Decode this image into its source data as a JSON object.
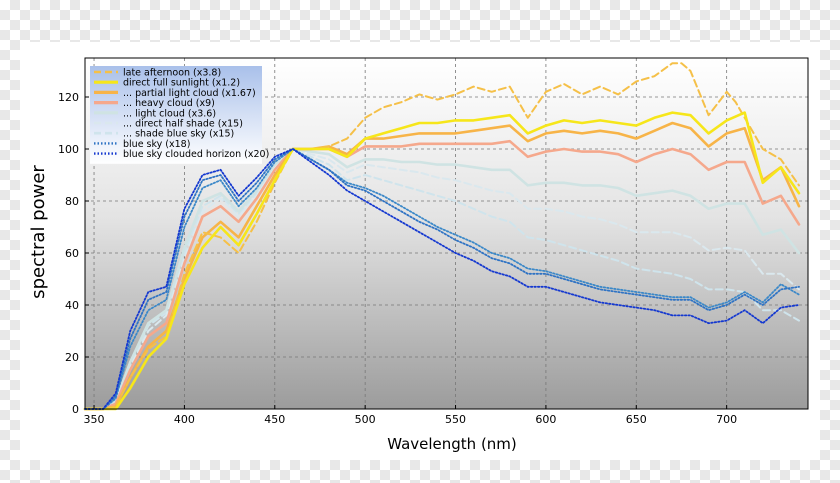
{
  "chart_data": {
    "type": "line",
    "title": "",
    "xlabel": "Wavelength (nm)",
    "ylabel": "spectral power",
    "xlim": [
      345,
      745
    ],
    "ylim": [
      0,
      135
    ],
    "xticks": [
      350,
      400,
      450,
      500,
      550,
      600,
      650,
      700
    ],
    "yticks": [
      0,
      20,
      40,
      60,
      80,
      100,
      120
    ],
    "grid": true,
    "legend_position": "upper-left",
    "series": [
      {
        "name": "late afternoon (x3.8)",
        "color": "#f5c048",
        "dash": "dashed",
        "x": [
          345,
          355,
          362,
          370,
          380,
          390,
          400,
          410,
          420,
          430,
          440,
          450,
          460,
          470,
          480,
          490,
          500,
          510,
          520,
          530,
          540,
          550,
          560,
          570,
          580,
          590,
          600,
          610,
          620,
          630,
          640,
          650,
          660,
          670,
          675,
          680,
          690,
          700,
          705,
          710,
          720,
          730,
          740
        ],
        "y": [
          0,
          0,
          1,
          12,
          23,
          28,
          52,
          68,
          66,
          60,
          72,
          87,
          100,
          100,
          101,
          104,
          112,
          116,
          118,
          121,
          119,
          121,
          124,
          122,
          124,
          112,
          122,
          125,
          121,
          124,
          121,
          126,
          128,
          133,
          133,
          130,
          113,
          122,
          118,
          112,
          100,
          96,
          86
        ]
      },
      {
        "name": "direct full sunlight (x1.2)",
        "color": "#f6e61a",
        "dash": "solid",
        "x": [
          345,
          355,
          362,
          370,
          380,
          390,
          400,
          410,
          420,
          430,
          440,
          450,
          460,
          470,
          480,
          490,
          500,
          510,
          520,
          530,
          540,
          550,
          560,
          570,
          580,
          590,
          600,
          610,
          620,
          630,
          640,
          650,
          660,
          670,
          680,
          690,
          700,
          710,
          720,
          730,
          740
        ],
        "y": [
          0,
          0,
          0,
          8,
          20,
          27,
          48,
          62,
          70,
          63,
          75,
          88,
          100,
          100,
          100,
          97,
          104,
          106,
          108,
          110,
          110,
          111,
          111,
          112,
          113,
          106,
          109,
          111,
          110,
          111,
          110,
          109,
          112,
          114,
          113,
          106,
          111,
          114,
          87,
          93,
          83
        ]
      },
      {
        "name": "... partial light cloud (x1.67)",
        "color": "#f7b448",
        "dash": "solid",
        "x": [
          345,
          355,
          362,
          370,
          380,
          390,
          400,
          410,
          420,
          430,
          440,
          450,
          460,
          470,
          480,
          490,
          500,
          510,
          520,
          530,
          540,
          550,
          560,
          570,
          580,
          590,
          600,
          610,
          620,
          630,
          640,
          650,
          660,
          670,
          680,
          690,
          700,
          710,
          720,
          730,
          740
        ],
        "y": [
          0,
          0,
          1,
          12,
          24,
          30,
          50,
          66,
          72,
          66,
          78,
          90,
          100,
          100,
          101,
          98,
          104,
          104,
          105,
          106,
          106,
          106,
          107,
          108,
          109,
          103,
          106,
          107,
          106,
          107,
          106,
          104,
          107,
          110,
          108,
          101,
          106,
          108,
          88,
          93,
          78
        ]
      },
      {
        "name": "... heavy cloud (x9)",
        "color": "#f5a88c",
        "dash": "solid",
        "x": [
          345,
          355,
          362,
          370,
          380,
          390,
          400,
          410,
          420,
          430,
          440,
          450,
          460,
          470,
          480,
          490,
          500,
          510,
          520,
          530,
          540,
          550,
          560,
          570,
          580,
          590,
          600,
          610,
          620,
          630,
          640,
          650,
          660,
          670,
          680,
          690,
          700,
          710,
          720,
          730,
          740
        ],
        "y": [
          0,
          0,
          2,
          15,
          28,
          33,
          56,
          74,
          78,
          72,
          81,
          92,
          100,
          100,
          100,
          97,
          101,
          101,
          101,
          102,
          102,
          102,
          102,
          102,
          103,
          97,
          99,
          100,
          99,
          99,
          98,
          95,
          98,
          100,
          98,
          92,
          95,
          95,
          79,
          82,
          71
        ]
      },
      {
        "name": "... light cloud (x3.6)",
        "color": "#cfe3e3",
        "dash": "solid",
        "x": [
          345,
          355,
          362,
          370,
          380,
          390,
          400,
          410,
          420,
          430,
          440,
          450,
          460,
          470,
          480,
          490,
          500,
          510,
          520,
          530,
          540,
          550,
          560,
          570,
          580,
          590,
          600,
          610,
          620,
          630,
          640,
          650,
          660,
          670,
          680,
          690,
          700,
          710,
          720,
          730,
          740
        ],
        "y": [
          0,
          0,
          3,
          18,
          33,
          38,
          62,
          80,
          83,
          76,
          84,
          94,
          100,
          99,
          98,
          93,
          96,
          96,
          95,
          95,
          94,
          94,
          93,
          92,
          92,
          86,
          87,
          87,
          86,
          86,
          85,
          82,
          83,
          84,
          82,
          77,
          79,
          79,
          67,
          69,
          60
        ]
      },
      {
        "name": "... direct half shade (x15)",
        "color": "#dae8ee",
        "dash": "dashed",
        "x": [
          345,
          355,
          362,
          370,
          380,
          390,
          400,
          410,
          420,
          430,
          440,
          450,
          460,
          470,
          480,
          490,
          500,
          510,
          520,
          530,
          540,
          550,
          560,
          570,
          580,
          590,
          600,
          610,
          620,
          630,
          640,
          650,
          660,
          670,
          680,
          690,
          700,
          710,
          720,
          730,
          740
        ],
        "y": [
          0,
          0,
          2,
          16,
          30,
          36,
          58,
          76,
          81,
          74,
          82,
          93,
          100,
          98,
          96,
          91,
          94,
          93,
          92,
          91,
          89,
          88,
          86,
          84,
          83,
          77,
          77,
          76,
          74,
          73,
          71,
          68,
          68,
          68,
          66,
          61,
          62,
          61,
          52,
          52,
          46
        ]
      },
      {
        "name": "... shade blue sky (x15)",
        "color": "#cfe4ec",
        "dash": "dashed",
        "x": [
          345,
          355,
          362,
          370,
          380,
          390,
          400,
          410,
          420,
          430,
          440,
          450,
          460,
          470,
          480,
          490,
          500,
          510,
          520,
          530,
          540,
          550,
          560,
          570,
          580,
          590,
          600,
          610,
          620,
          630,
          640,
          650,
          660,
          670,
          680,
          690,
          700,
          710,
          720,
          730,
          740
        ],
        "y": [
          0,
          0,
          3,
          17,
          32,
          37,
          60,
          78,
          82,
          75,
          83,
          93,
          100,
          97,
          94,
          88,
          90,
          88,
          86,
          84,
          82,
          80,
          77,
          74,
          72,
          66,
          65,
          63,
          61,
          59,
          57,
          54,
          53,
          52,
          50,
          46,
          46,
          45,
          38,
          38,
          34
        ]
      },
      {
        "name": "blue sky (x18)",
        "color": "#2f73c4",
        "dash": "dotted",
        "x": [
          345,
          355,
          362,
          370,
          380,
          390,
          400,
          410,
          420,
          430,
          440,
          450,
          460,
          470,
          480,
          490,
          500,
          510,
          520,
          530,
          540,
          550,
          560,
          570,
          580,
          590,
          600,
          610,
          620,
          630,
          640,
          650,
          660,
          670,
          680,
          690,
          700,
          710,
          720,
          730,
          740
        ],
        "y": [
          0,
          0,
          5,
          27,
          42,
          45,
          74,
          88,
          90,
          80,
          87,
          96,
          100,
          96,
          92,
          86,
          84,
          80,
          76,
          72,
          69,
          65,
          62,
          58,
          56,
          52,
          52,
          50,
          48,
          46,
          45,
          44,
          43,
          42,
          42,
          38,
          40,
          44,
          40,
          46,
          47
        ]
      },
      {
        "name": "blue sky clouded horizon (x20)",
        "color": "#1438d0",
        "dash": "dotted",
        "x": [
          345,
          355,
          362,
          370,
          380,
          390,
          400,
          410,
          420,
          430,
          440,
          450,
          460,
          470,
          480,
          490,
          500,
          510,
          520,
          530,
          540,
          550,
          560,
          570,
          580,
          590,
          600,
          610,
          620,
          630,
          640,
          650,
          660,
          670,
          680,
          690,
          700,
          710,
          720,
          730,
          740
        ],
        "y": [
          0,
          0,
          6,
          30,
          45,
          47,
          77,
          90,
          92,
          82,
          89,
          97,
          100,
          95,
          90,
          84,
          80,
          76,
          72,
          68,
          64,
          60,
          57,
          53,
          51,
          47,
          47,
          45,
          43,
          41,
          40,
          39,
          38,
          36,
          36,
          33,
          34,
          38,
          33,
          39,
          40
        ]
      },
      {
        "name": "",
        "color": "#3b88c8",
        "dash": "dotted",
        "legend": false,
        "x": [
          345,
          355,
          362,
          370,
          380,
          390,
          400,
          410,
          420,
          430,
          440,
          450,
          460,
          470,
          480,
          490,
          500,
          510,
          520,
          530,
          540,
          550,
          560,
          570,
          580,
          590,
          600,
          610,
          620,
          630,
          640,
          650,
          660,
          670,
          680,
          690,
          700,
          710,
          720,
          730,
          740
        ],
        "y": [
          0,
          0,
          4,
          24,
          38,
          42,
          70,
          85,
          88,
          78,
          85,
          95,
          100,
          96,
          92,
          87,
          85,
          82,
          78,
          74,
          70,
          67,
          64,
          60,
          58,
          54,
          53,
          51,
          49,
          47,
          46,
          45,
          44,
          43,
          43,
          39,
          41,
          45,
          41,
          48,
          44
        ]
      }
    ]
  }
}
